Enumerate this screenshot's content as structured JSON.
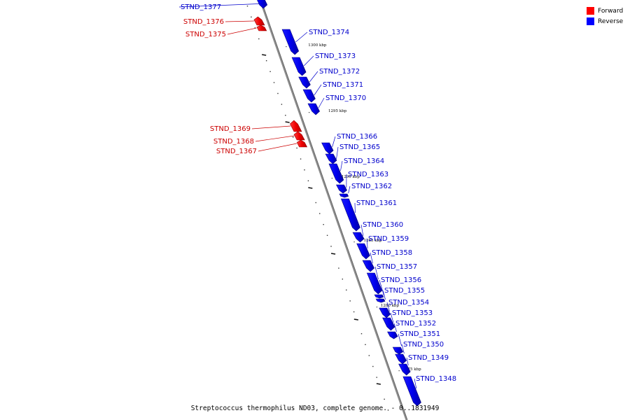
{
  "colors": {
    "forward": "#ff0000",
    "reverse": "#0000ff",
    "forward_label": "#cc0000",
    "reverse_label": "#0000cc",
    "backbone": "#8c8c8c"
  },
  "legend": [
    {
      "label": "Forward",
      "color": "#ff0000"
    },
    {
      "label": "Reverse",
      "color": "#0000ff"
    }
  ],
  "caption": "Streptococcus thermophilus ND03, complete genome. - 0..1831949",
  "scale_labels": [
    "1300 kbp",
    "1295 kbp",
    "1290 kbp",
    "1285 kbp",
    "1280 kbp",
    "1275 kbp"
  ],
  "genes": [
    {
      "id": "STND_1377",
      "strand": "reverse"
    },
    {
      "id": "STND_1376",
      "strand": "forward"
    },
    {
      "id": "STND_1375",
      "strand": "forward"
    },
    {
      "id": "STND_1374",
      "strand": "reverse"
    },
    {
      "id": "STND_1373",
      "strand": "reverse"
    },
    {
      "id": "STND_1372",
      "strand": "reverse"
    },
    {
      "id": "STND_1371",
      "strand": "reverse"
    },
    {
      "id": "STND_1370",
      "strand": "reverse"
    },
    {
      "id": "STND_1369",
      "strand": "forward"
    },
    {
      "id": "STND_1368",
      "strand": "forward"
    },
    {
      "id": "STND_1367",
      "strand": "forward"
    },
    {
      "id": "STND_1366",
      "strand": "reverse"
    },
    {
      "id": "STND_1365",
      "strand": "reverse"
    },
    {
      "id": "STND_1364",
      "strand": "reverse"
    },
    {
      "id": "STND_1363",
      "strand": "reverse"
    },
    {
      "id": "STND_1362",
      "strand": "reverse"
    },
    {
      "id": "STND_1361",
      "strand": "reverse"
    },
    {
      "id": "STND_1360",
      "strand": "reverse"
    },
    {
      "id": "STND_1359",
      "strand": "reverse"
    },
    {
      "id": "STND_1358",
      "strand": "reverse"
    },
    {
      "id": "STND_1357",
      "strand": "reverse"
    },
    {
      "id": "STND_1356",
      "strand": "reverse"
    },
    {
      "id": "STND_1355",
      "strand": "reverse"
    },
    {
      "id": "STND_1354",
      "strand": "reverse"
    },
    {
      "id": "STND_1353",
      "strand": "reverse"
    },
    {
      "id": "STND_1352",
      "strand": "reverse"
    },
    {
      "id": "STND_1351",
      "strand": "reverse"
    },
    {
      "id": "STND_1350",
      "strand": "reverse"
    },
    {
      "id": "STND_1349",
      "strand": "reverse"
    },
    {
      "id": "STND_1348",
      "strand": "reverse"
    }
  ]
}
